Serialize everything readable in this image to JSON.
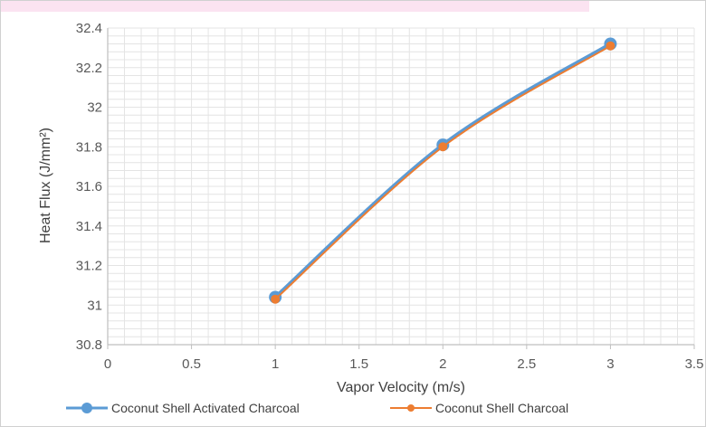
{
  "colors": {
    "series_1": "#5b9bd5",
    "series_2": "#ed7d31",
    "grid": "#e4e4e4",
    "axis": "#bfbfbf",
    "text": "#595959"
  },
  "chart_data": {
    "type": "line",
    "xlabel": "Vapor Velocity (m/s)",
    "ylabel": "Heat Flux (J/mm²)",
    "xlim": [
      0,
      3.5
    ],
    "ylim": [
      30.8,
      32.4
    ],
    "x_ticks": [
      "0",
      "0.5",
      "1",
      "1.5",
      "2",
      "2.5",
      "3",
      "3.5"
    ],
    "y_ticks": [
      "30.8",
      "31",
      "31.2",
      "31.4",
      "31.6",
      "31.8",
      "32",
      "32.2",
      "32.4"
    ],
    "grid": "major and minor",
    "legend_position": "bottom",
    "series": [
      {
        "name": "Coconut Shell Activated Charcoal",
        "x": [
          1,
          2,
          3
        ],
        "y": [
          31.04,
          31.81,
          32.32
        ],
        "marker": "circle-large"
      },
      {
        "name": "Coconut Shell Charcoal",
        "x": [
          1,
          2,
          3
        ],
        "y": [
          31.03,
          31.8,
          32.31
        ],
        "marker": "circle-small"
      }
    ]
  }
}
